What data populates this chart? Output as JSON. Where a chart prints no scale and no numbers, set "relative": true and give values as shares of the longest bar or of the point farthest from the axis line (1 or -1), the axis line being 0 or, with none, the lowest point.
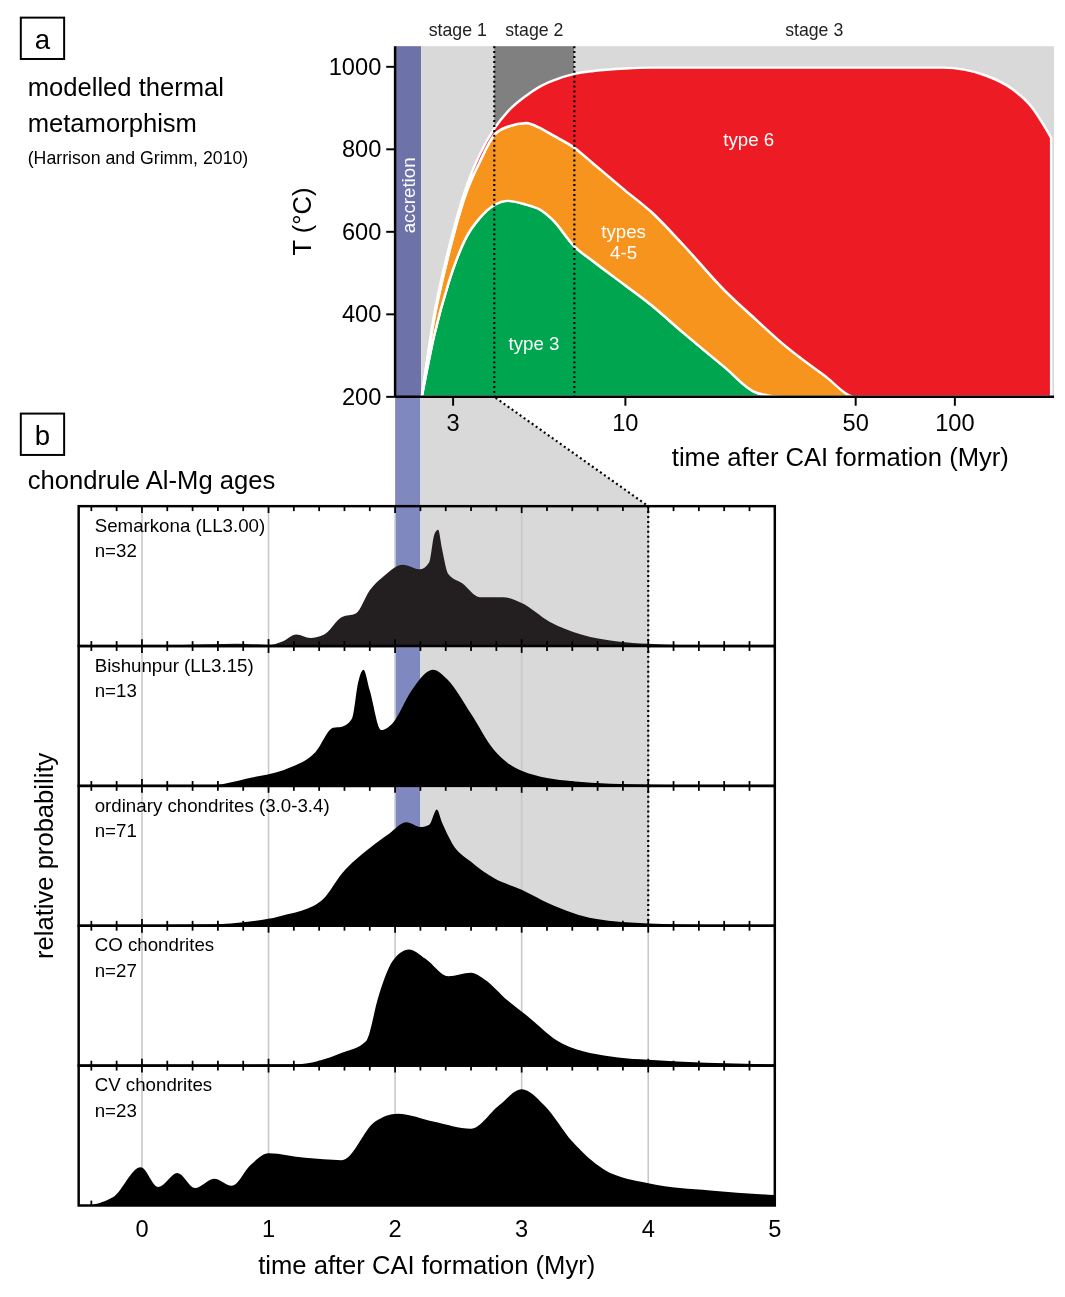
{
  "chart_data": [
    {
      "type": "area",
      "title": "modelled thermal metamorphism",
      "subtitle": "(Harrison and Grimm, 2010)",
      "annotations": [
        "a"
      ],
      "xlabel": "time after CAI formation (Myr)",
      "ylabel": "T (°C)",
      "log": "x",
      "xlim": [
        2,
        200
      ],
      "ylim": [
        200,
        1050
      ],
      "xticks": [
        3,
        10,
        50,
        100
      ],
      "yticks": [
        200,
        400,
        600,
        800,
        1000
      ],
      "bands": [
        {
          "axis": "x",
          "from": 2,
          "to": 2.4,
          "label": "accretion",
          "color": "#6d72a8"
        },
        {
          "axis": "x",
          "from": 2.4,
          "to": 4,
          "label": "stage 1",
          "color": "#d9d9d9"
        },
        {
          "axis": "x",
          "from": 4,
          "to": 7,
          "label": "stage 2",
          "color": "#808080"
        },
        {
          "axis": "x",
          "from": 7,
          "to": 200,
          "label": "stage 3",
          "color": "#d9d9d9"
        }
      ],
      "ref_lines": [
        {
          "axis": "x",
          "value": 4,
          "line_style": "dotted"
        },
        {
          "axis": "x",
          "value": 7,
          "line_style": "dotted"
        }
      ],
      "x": [
        2.41,
        2.63,
        2.9,
        3.3,
        3.6,
        4,
        4.4,
        5,
        5.5,
        6,
        7,
        8,
        10,
        12,
        15,
        20,
        25,
        30,
        40,
        50,
        70,
        92,
        124,
        150,
        170,
        196
      ],
      "series": [
        {
          "name": "type 3",
          "color": "#00a550",
          "values": [
            200,
            350,
            474,
            589,
            632,
            665,
            675,
            666,
            654,
            630,
            565,
            528,
            470,
            422,
            355,
            272,
            210,
            200,
            null,
            null,
            null,
            null,
            null,
            null,
            null,
            null
          ]
        },
        {
          "name": "types 4-5",
          "color": "#f7941d",
          "values": [
            200,
            391,
            542,
            698,
            767,
            835,
            855,
            864,
            852,
            835,
            804,
            765,
            700,
            648,
            568,
            458,
            386,
            329,
            253,
            200,
            null,
            null,
            null,
            null,
            null,
            null
          ]
        },
        {
          "name": "type 6",
          "color": "#ed1c24",
          "values": [
            200,
            401,
            555,
            712,
            785,
            850,
            892,
            930,
            952,
            966,
            983,
            990,
            996,
            998,
            998,
            998,
            998,
            998,
            998,
            998,
            998,
            998,
            979,
            945,
            905,
            828
          ]
        }
      ]
    },
    {
      "type": "area",
      "relative": true,
      "title": "Semarkona (LL3.00)",
      "annotations": [
        "n=32",
        "b",
        "chondrule Al-Mg ages"
      ],
      "xlim": [
        -0.5,
        5
      ],
      "xticks": [
        {
          "value": -0.4,
          "label": null
        },
        {
          "value": -0.2,
          "label": null
        },
        0,
        {
          "value": 0.2,
          "label": null
        },
        {
          "value": 0.4,
          "label": null
        },
        {
          "value": 0.6,
          "label": null
        },
        {
          "value": 0.8,
          "label": null
        },
        1,
        {
          "value": 1.2,
          "label": null
        },
        {
          "value": 1.4,
          "label": null
        },
        {
          "value": 1.6,
          "label": null
        },
        {
          "value": 1.8,
          "label": null
        },
        2,
        {
          "value": 2.2,
          "label": null
        },
        {
          "value": 2.4,
          "label": null
        },
        {
          "value": 2.6,
          "label": null
        },
        {
          "value": 2.8,
          "label": null
        },
        3,
        {
          "value": 3.2,
          "label": null
        },
        {
          "value": 3.4,
          "label": null
        },
        {
          "value": 3.6,
          "label": null
        },
        {
          "value": 3.8,
          "label": null
        },
        4,
        {
          "value": 4.2,
          "label": null
        },
        {
          "value": 4.4,
          "label": null
        },
        {
          "value": 4.6,
          "label": null
        },
        {
          "value": 4.8,
          "label": null
        },
        5
      ],
      "grid": "x",
      "tick_labels": false,
      "bands": [
        {
          "axis": "x",
          "from": 2,
          "to": 2.2,
          "color": "#8088c0"
        },
        {
          "axis": "x",
          "from": 2.2,
          "to": 4,
          "color": "#d9d9d9"
        }
      ],
      "ref_lines": [
        {
          "axis": "x",
          "value": 4,
          "line_style": "dotted"
        }
      ],
      "series": [
        {
          "color": "#231f20",
          "x": [
            -0.5,
            -0.45,
            0.32,
            0.75,
            1.0,
            1.11,
            1.22,
            1.33,
            1.44,
            1.58,
            1.69,
            1.8,
            1.91,
            2.06,
            2.2,
            2.27,
            2.31,
            2.34,
            2.37,
            2.42,
            2.53,
            2.67,
            2.85,
            3.0,
            3.22,
            3.47,
            3.76,
            4.0,
            4.49,
            5.0
          ],
          "values": [
            0,
            0,
            0.01,
            0.02,
            0.01,
            0.04,
            0.1,
            0.07,
            0.1,
            0.25,
            0.28,
            0.48,
            0.6,
            0.7,
            0.66,
            0.72,
            0.96,
            1.0,
            0.84,
            0.62,
            0.54,
            0.42,
            0.42,
            0.37,
            0.21,
            0.1,
            0.04,
            0.02,
            0.004,
            0
          ]
        }
      ]
    },
    {
      "type": "area",
      "relative": true,
      "title": "Bishunpur (LL3.15)",
      "annotations": [
        "n=13"
      ],
      "xlim": [
        -0.5,
        5
      ],
      "xticks": [
        {
          "value": -0.4,
          "label": null
        },
        {
          "value": -0.2,
          "label": null
        },
        0,
        {
          "value": 0.2,
          "label": null
        },
        {
          "value": 0.4,
          "label": null
        },
        {
          "value": 0.6,
          "label": null
        },
        {
          "value": 0.8,
          "label": null
        },
        1,
        {
          "value": 1.2,
          "label": null
        },
        {
          "value": 1.4,
          "label": null
        },
        {
          "value": 1.6,
          "label": null
        },
        {
          "value": 1.8,
          "label": null
        },
        2,
        {
          "value": 2.2,
          "label": null
        },
        {
          "value": 2.4,
          "label": null
        },
        {
          "value": 2.6,
          "label": null
        },
        {
          "value": 2.8,
          "label": null
        },
        3,
        {
          "value": 3.2,
          "label": null
        },
        {
          "value": 3.4,
          "label": null
        },
        {
          "value": 3.6,
          "label": null
        },
        {
          "value": 3.8,
          "label": null
        },
        4,
        {
          "value": 4.2,
          "label": null
        },
        {
          "value": 4.4,
          "label": null
        },
        {
          "value": 4.6,
          "label": null
        },
        {
          "value": 4.8,
          "label": null
        },
        5
      ],
      "grid": "x",
      "tick_labels": false,
      "bands": [
        {
          "axis": "x",
          "from": 2,
          "to": 2.2,
          "color": "#8088c0"
        },
        {
          "axis": "x",
          "from": 2.2,
          "to": 4,
          "color": "#d9d9d9"
        }
      ],
      "ref_lines": [
        {
          "axis": "x",
          "value": 4,
          "line_style": "dotted"
        }
      ],
      "series": [
        {
          "color": "#000000",
          "x": [
            -0.5,
            0.5,
            0.86,
            1.15,
            1.37,
            1.51,
            1.58,
            1.66,
            1.71,
            1.75,
            1.8,
            1.89,
            1.98,
            2.13,
            2.27,
            2.3,
            2.41,
            2.6,
            2.78,
            3.0,
            3.4,
            4.0,
            5.0
          ],
          "values": [
            0,
            0,
            0.07,
            0.15,
            0.29,
            0.5,
            0.51,
            0.58,
            0.9,
            1.0,
            0.82,
            0.48,
            0.54,
            0.82,
            0.99,
            1.0,
            0.92,
            0.62,
            0.31,
            0.13,
            0.04,
            0.01,
            0
          ]
        }
      ]
    },
    {
      "type": "area",
      "relative": true,
      "title": "ordinary chondrites (3.0-3.4)",
      "annotations": [
        "n=71"
      ],
      "ylabel": "relative probability",
      "xlim": [
        -0.5,
        5
      ],
      "xticks": [
        {
          "value": -0.4,
          "label": null
        },
        {
          "value": -0.2,
          "label": null
        },
        0,
        {
          "value": 0.2,
          "label": null
        },
        {
          "value": 0.4,
          "label": null
        },
        {
          "value": 0.6,
          "label": null
        },
        {
          "value": 0.8,
          "label": null
        },
        1,
        {
          "value": 1.2,
          "label": null
        },
        {
          "value": 1.4,
          "label": null
        },
        {
          "value": 1.6,
          "label": null
        },
        {
          "value": 1.8,
          "label": null
        },
        2,
        {
          "value": 2.2,
          "label": null
        },
        {
          "value": 2.4,
          "label": null
        },
        {
          "value": 2.6,
          "label": null
        },
        {
          "value": 2.8,
          "label": null
        },
        3,
        {
          "value": 3.2,
          "label": null
        },
        {
          "value": 3.4,
          "label": null
        },
        {
          "value": 3.6,
          "label": null
        },
        {
          "value": 3.8,
          "label": null
        },
        4,
        {
          "value": 4.2,
          "label": null
        },
        {
          "value": 4.4,
          "label": null
        },
        {
          "value": 4.6,
          "label": null
        },
        {
          "value": 4.8,
          "label": null
        },
        5
      ],
      "grid": "x",
      "tick_labels": false,
      "bands": [
        {
          "axis": "x",
          "from": 2,
          "to": 2.2,
          "color": "#8088c0"
        },
        {
          "axis": "x",
          "from": 2.2,
          "to": 4,
          "color": "#d9d9d9"
        }
      ],
      "ref_lines": [
        {
          "axis": "x",
          "value": 4,
          "line_style": "dotted"
        }
      ],
      "series": [
        {
          "color": "#000000",
          "x": [
            -0.5,
            -0.45,
            0.5,
            1.0,
            1.15,
            1.26,
            1.44,
            1.58,
            1.8,
            1.95,
            2.09,
            2.2,
            2.27,
            2.33,
            2.37,
            2.45,
            2.6,
            2.78,
            3.0,
            3.22,
            3.58,
            4.0,
            5.0
          ],
          "values": [
            0,
            0,
            0.01,
            0.06,
            0.1,
            0.13,
            0.24,
            0.45,
            0.67,
            0.79,
            0.89,
            0.85,
            0.87,
            1.0,
            0.89,
            0.71,
            0.55,
            0.41,
            0.31,
            0.19,
            0.06,
            0.02,
            0
          ]
        }
      ]
    },
    {
      "type": "area",
      "relative": true,
      "title": "CO chondrites",
      "annotations": [
        "n=27"
      ],
      "xlim": [
        -0.5,
        5
      ],
      "xticks": [
        {
          "value": -0.4,
          "label": null
        },
        {
          "value": -0.2,
          "label": null
        },
        0,
        {
          "value": 0.2,
          "label": null
        },
        {
          "value": 0.4,
          "label": null
        },
        {
          "value": 0.6,
          "label": null
        },
        {
          "value": 0.8,
          "label": null
        },
        1,
        {
          "value": 1.2,
          "label": null
        },
        {
          "value": 1.4,
          "label": null
        },
        {
          "value": 1.6,
          "label": null
        },
        {
          "value": 1.8,
          "label": null
        },
        2,
        {
          "value": 2.2,
          "label": null
        },
        {
          "value": 2.4,
          "label": null
        },
        {
          "value": 2.6,
          "label": null
        },
        {
          "value": 2.8,
          "label": null
        },
        3,
        {
          "value": 3.2,
          "label": null
        },
        {
          "value": 3.4,
          "label": null
        },
        {
          "value": 3.6,
          "label": null
        },
        {
          "value": 3.8,
          "label": null
        },
        4,
        {
          "value": 4.2,
          "label": null
        },
        {
          "value": 4.4,
          "label": null
        },
        {
          "value": 4.6,
          "label": null
        },
        {
          "value": 4.8,
          "label": null
        },
        5
      ],
      "grid": "x",
      "tick_labels": false,
      "series": [
        {
          "color": "#000000",
          "x": [
            -0.5,
            -0.45,
            1.22,
            1.58,
            1.77,
            1.87,
            1.98,
            2.11,
            2.24,
            2.42,
            2.6,
            2.71,
            2.89,
            3.03,
            3.32,
            3.76,
            4.0,
            5.0
          ],
          "values": [
            0,
            0,
            0.01,
            0.11,
            0.21,
            0.6,
            0.9,
            1.0,
            0.92,
            0.77,
            0.8,
            0.74,
            0.56,
            0.44,
            0.19,
            0.07,
            0.05,
            0.01
          ]
        }
      ]
    },
    {
      "type": "area",
      "relative": true,
      "title": "CV chondrites",
      "annotations": [
        "n=23"
      ],
      "xlabel": "time after CAI formation (Myr)",
      "xlim": [
        -0.5,
        5
      ],
      "xticks": [
        {
          "value": -0.4,
          "label": null
        },
        {
          "value": -0.2,
          "label": null
        },
        0,
        {
          "value": 0.2,
          "label": null
        },
        {
          "value": 0.4,
          "label": null
        },
        {
          "value": 0.6,
          "label": null
        },
        {
          "value": 0.8,
          "label": null
        },
        1,
        {
          "value": 1.2,
          "label": null
        },
        {
          "value": 1.4,
          "label": null
        },
        {
          "value": 1.6,
          "label": null
        },
        {
          "value": 1.8,
          "label": null
        },
        2,
        {
          "value": 2.2,
          "label": null
        },
        {
          "value": 2.4,
          "label": null
        },
        {
          "value": 2.6,
          "label": null
        },
        {
          "value": 2.8,
          "label": null
        },
        3,
        {
          "value": 3.2,
          "label": null
        },
        {
          "value": 3.4,
          "label": null
        },
        {
          "value": 3.6,
          "label": null
        },
        {
          "value": 3.8,
          "label": null
        },
        4,
        {
          "value": 4.2,
          "label": null
        },
        {
          "value": 4.4,
          "label": null
        },
        {
          "value": 4.6,
          "label": null
        },
        {
          "value": 4.8,
          "label": null
        },
        5
      ],
      "grid": "x",
      "tick_labels": "x",
      "series": [
        {
          "color": "#000000",
          "x": [
            -0.5,
            -0.45,
            -0.23,
            -0.01,
            0.13,
            0.28,
            0.42,
            0.57,
            0.71,
            0.86,
            1.0,
            1.29,
            1.58,
            1.84,
            2.02,
            2.31,
            2.6,
            2.82,
            3.0,
            3.18,
            3.4,
            3.65,
            4.01,
            4.49,
            5.0
          ],
          "values": [
            0,
            0,
            0.07,
            0.33,
            0.16,
            0.28,
            0.15,
            0.23,
            0.17,
            0.35,
            0.45,
            0.41,
            0.39,
            0.72,
            0.79,
            0.72,
            0.66,
            0.86,
            1.0,
            0.86,
            0.55,
            0.31,
            0.19,
            0.13,
            0.09
          ]
        }
      ]
    }
  ]
}
